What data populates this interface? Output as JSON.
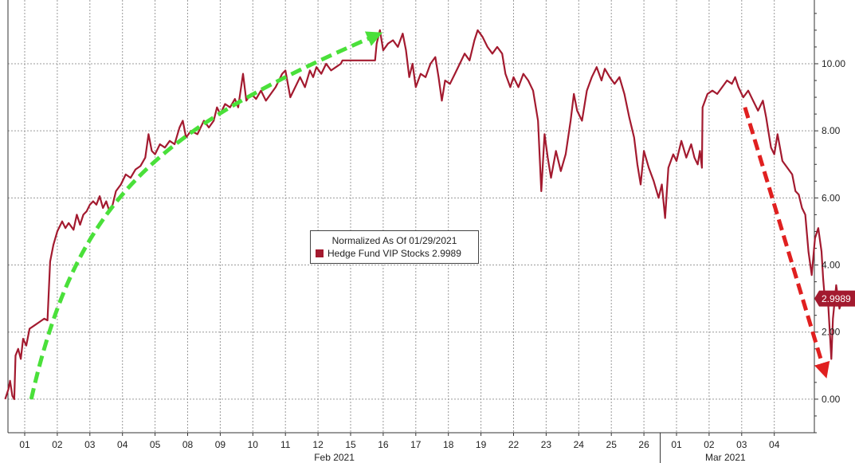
{
  "chart_data": {
    "type": "line",
    "title": "",
    "xlabel": "",
    "ylabel": "",
    "ylim": [
      -1,
      11.9
    ],
    "yticks": [
      "0.00",
      "2.00",
      "4.00",
      "6.00",
      "8.00",
      "10.00"
    ],
    "ytick_values": [
      0,
      2,
      4,
      6,
      8,
      10
    ],
    "grid": true,
    "legend_position": "center",
    "legend": {
      "title": "Normalized As Of 01/29/2021",
      "entries": [
        {
          "label": "Hedge Fund VIP Stocks 2.9989",
          "color": "#a31a2f"
        }
      ]
    },
    "last_value_label": "2.9989",
    "x_tick_labels": [
      "01",
      "02",
      "03",
      "04",
      "05",
      "08",
      "09",
      "10",
      "11",
      "12",
      "15",
      "16",
      "17",
      "18",
      "19",
      "22",
      "23",
      "24",
      "25",
      "26",
      "01",
      "02",
      "03",
      "04"
    ],
    "month_labels": [
      {
        "label": "Feb 2021",
        "from": 0,
        "to": 19
      },
      {
        "label": "Mar 2021",
        "from": 20,
        "to": 23
      }
    ],
    "series": [
      {
        "name": "Hedge Fund VIP Stocks",
        "color": "#a31a2f",
        "points": [
          [
            -0.6,
            0.0
          ],
          [
            -0.5,
            0.3
          ],
          [
            -0.45,
            0.55
          ],
          [
            -0.38,
            0.1
          ],
          [
            -0.32,
            0.0
          ],
          [
            -0.28,
            1.3
          ],
          [
            -0.2,
            1.5
          ],
          [
            -0.12,
            1.2
          ],
          [
            -0.05,
            1.8
          ],
          [
            0.05,
            1.6
          ],
          [
            0.15,
            2.1
          ],
          [
            0.3,
            2.2
          ],
          [
            0.45,
            2.3
          ],
          [
            0.6,
            2.4
          ],
          [
            0.7,
            2.35
          ],
          [
            0.78,
            4.1
          ],
          [
            0.88,
            4.6
          ],
          [
            1.0,
            5.0
          ],
          [
            1.15,
            5.3
          ],
          [
            1.25,
            5.1
          ],
          [
            1.35,
            5.25
          ],
          [
            1.5,
            5.05
          ],
          [
            1.6,
            5.5
          ],
          [
            1.7,
            5.2
          ],
          [
            1.8,
            5.5
          ],
          [
            1.9,
            5.6
          ],
          [
            2.0,
            5.8
          ],
          [
            2.1,
            5.9
          ],
          [
            2.2,
            5.8
          ],
          [
            2.3,
            6.05
          ],
          [
            2.4,
            5.7
          ],
          [
            2.5,
            5.9
          ],
          [
            2.6,
            5.6
          ],
          [
            2.7,
            5.8
          ],
          [
            2.8,
            6.2
          ],
          [
            2.95,
            6.4
          ],
          [
            3.1,
            6.7
          ],
          [
            3.25,
            6.6
          ],
          [
            3.4,
            6.85
          ],
          [
            3.55,
            6.95
          ],
          [
            3.7,
            7.2
          ],
          [
            3.8,
            7.9
          ],
          [
            3.9,
            7.4
          ],
          [
            4.0,
            7.3
          ],
          [
            4.15,
            7.6
          ],
          [
            4.3,
            7.5
          ],
          [
            4.45,
            7.7
          ],
          [
            4.6,
            7.6
          ],
          [
            4.75,
            8.1
          ],
          [
            4.85,
            8.3
          ],
          [
            4.95,
            7.8
          ],
          [
            5.1,
            8.0
          ],
          [
            5.3,
            7.9
          ],
          [
            5.5,
            8.3
          ],
          [
            5.65,
            8.1
          ],
          [
            5.8,
            8.3
          ],
          [
            5.9,
            8.7
          ],
          [
            6.0,
            8.5
          ],
          [
            6.15,
            8.8
          ],
          [
            6.3,
            8.7
          ],
          [
            6.45,
            8.95
          ],
          [
            6.55,
            8.7
          ],
          [
            6.7,
            9.7
          ],
          [
            6.8,
            8.9
          ],
          [
            6.95,
            9.1
          ],
          [
            7.1,
            8.95
          ],
          [
            7.25,
            9.2
          ],
          [
            7.4,
            8.9
          ],
          [
            7.55,
            9.1
          ],
          [
            7.7,
            9.3
          ],
          [
            7.8,
            9.5
          ],
          [
            7.9,
            9.7
          ],
          [
            8.0,
            9.8
          ],
          [
            8.15,
            9.0
          ],
          [
            8.3,
            9.3
          ],
          [
            8.45,
            9.6
          ],
          [
            8.6,
            9.3
          ],
          [
            8.75,
            9.8
          ],
          [
            8.85,
            9.6
          ],
          [
            8.95,
            9.9
          ],
          [
            9.1,
            9.7
          ],
          [
            9.25,
            10.0
          ],
          [
            9.4,
            9.8
          ],
          [
            9.55,
            9.9
          ],
          [
            9.7,
            10.0
          ],
          [
            9.75,
            10.1
          ],
          [
            10.0,
            10.1
          ],
          [
            10.5,
            10.1
          ],
          [
            10.75,
            10.1
          ],
          [
            10.8,
            10.6
          ],
          [
            10.9,
            11.0
          ],
          [
            11.0,
            10.4
          ],
          [
            11.15,
            10.6
          ],
          [
            11.3,
            10.7
          ],
          [
            11.45,
            10.5
          ],
          [
            11.6,
            10.9
          ],
          [
            11.7,
            10.4
          ],
          [
            11.8,
            9.6
          ],
          [
            11.9,
            10.0
          ],
          [
            12.0,
            9.3
          ],
          [
            12.15,
            9.7
          ],
          [
            12.3,
            9.6
          ],
          [
            12.45,
            10.0
          ],
          [
            12.6,
            10.2
          ],
          [
            12.7,
            9.6
          ],
          [
            12.8,
            8.9
          ],
          [
            12.9,
            9.5
          ],
          [
            13.05,
            9.4
          ],
          [
            13.2,
            9.7
          ],
          [
            13.35,
            10.0
          ],
          [
            13.5,
            10.3
          ],
          [
            13.65,
            10.1
          ],
          [
            13.8,
            10.7
          ],
          [
            13.9,
            11.0
          ],
          [
            14.05,
            10.8
          ],
          [
            14.2,
            10.5
          ],
          [
            14.35,
            10.3
          ],
          [
            14.5,
            10.5
          ],
          [
            14.65,
            10.3
          ],
          [
            14.75,
            9.7
          ],
          [
            14.9,
            9.3
          ],
          [
            15.0,
            9.6
          ],
          [
            15.15,
            9.3
          ],
          [
            15.3,
            9.7
          ],
          [
            15.45,
            9.5
          ],
          [
            15.6,
            9.2
          ],
          [
            15.75,
            8.3
          ],
          [
            15.85,
            6.2
          ],
          [
            15.95,
            7.9
          ],
          [
            16.05,
            7.2
          ],
          [
            16.15,
            6.6
          ],
          [
            16.3,
            7.4
          ],
          [
            16.45,
            6.8
          ],
          [
            16.6,
            7.3
          ],
          [
            16.75,
            8.3
          ],
          [
            16.85,
            9.1
          ],
          [
            16.95,
            8.6
          ],
          [
            17.1,
            8.3
          ],
          [
            17.25,
            9.2
          ],
          [
            17.4,
            9.6
          ],
          [
            17.55,
            9.9
          ],
          [
            17.7,
            9.5
          ],
          [
            17.8,
            9.85
          ],
          [
            17.95,
            9.6
          ],
          [
            18.1,
            9.4
          ],
          [
            18.25,
            9.6
          ],
          [
            18.4,
            9.1
          ],
          [
            18.55,
            8.4
          ],
          [
            18.7,
            7.8
          ],
          [
            18.8,
            7.0
          ],
          [
            18.9,
            6.4
          ],
          [
            19.0,
            7.4
          ],
          [
            19.15,
            6.9
          ],
          [
            19.3,
            6.5
          ],
          [
            19.45,
            6.0
          ],
          [
            19.55,
            6.4
          ],
          [
            19.65,
            5.4
          ],
          [
            19.75,
            6.9
          ],
          [
            19.9,
            7.3
          ],
          [
            20.0,
            7.1
          ],
          [
            20.15,
            7.7
          ],
          [
            20.3,
            7.2
          ],
          [
            20.45,
            7.6
          ],
          [
            20.55,
            7.2
          ],
          [
            20.65,
            7.0
          ],
          [
            20.72,
            7.4
          ],
          [
            20.78,
            6.9
          ],
          [
            20.8,
            8.7
          ],
          [
            20.95,
            9.1
          ],
          [
            21.1,
            9.2
          ],
          [
            21.25,
            9.1
          ],
          [
            21.4,
            9.3
          ],
          [
            21.55,
            9.5
          ],
          [
            21.7,
            9.4
          ],
          [
            21.8,
            9.6
          ],
          [
            21.9,
            9.3
          ],
          [
            22.05,
            9.0
          ],
          [
            22.2,
            9.2
          ],
          [
            22.35,
            8.9
          ],
          [
            22.5,
            8.6
          ],
          [
            22.65,
            8.9
          ],
          [
            22.75,
            8.4
          ],
          [
            22.8,
            8.1
          ],
          [
            22.9,
            7.5
          ],
          [
            23.0,
            7.3
          ],
          [
            23.1,
            7.9
          ],
          [
            23.25,
            7.1
          ],
          [
            23.4,
            6.9
          ],
          [
            23.55,
            6.7
          ],
          [
            23.65,
            6.2
          ],
          [
            23.75,
            6.1
          ],
          [
            23.85,
            5.7
          ],
          [
            23.95,
            5.5
          ],
          [
            24.05,
            4.4
          ],
          [
            24.15,
            3.7
          ],
          [
            24.25,
            4.8
          ],
          [
            24.35,
            5.1
          ],
          [
            24.45,
            4.4
          ],
          [
            24.5,
            3.6
          ],
          [
            24.55,
            3.0
          ],
          [
            24.65,
            2.9
          ],
          [
            24.75,
            1.2
          ],
          [
            24.8,
            2.4
          ],
          [
            24.9,
            3.4
          ],
          [
            25.0,
            2.7
          ],
          [
            25.1,
            2.9989
          ]
        ]
      }
    ],
    "annotations": [
      {
        "type": "dashed-arrow",
        "color": "#4ae03a",
        "from": [
          0.2,
          0.0
        ],
        "to": [
          10.95,
          11.0
        ]
      },
      {
        "type": "dashed-arrow",
        "color": "#e02020",
        "from": [
          22.1,
          8.7
        ],
        "to": [
          24.55,
          0.8
        ]
      }
    ]
  }
}
